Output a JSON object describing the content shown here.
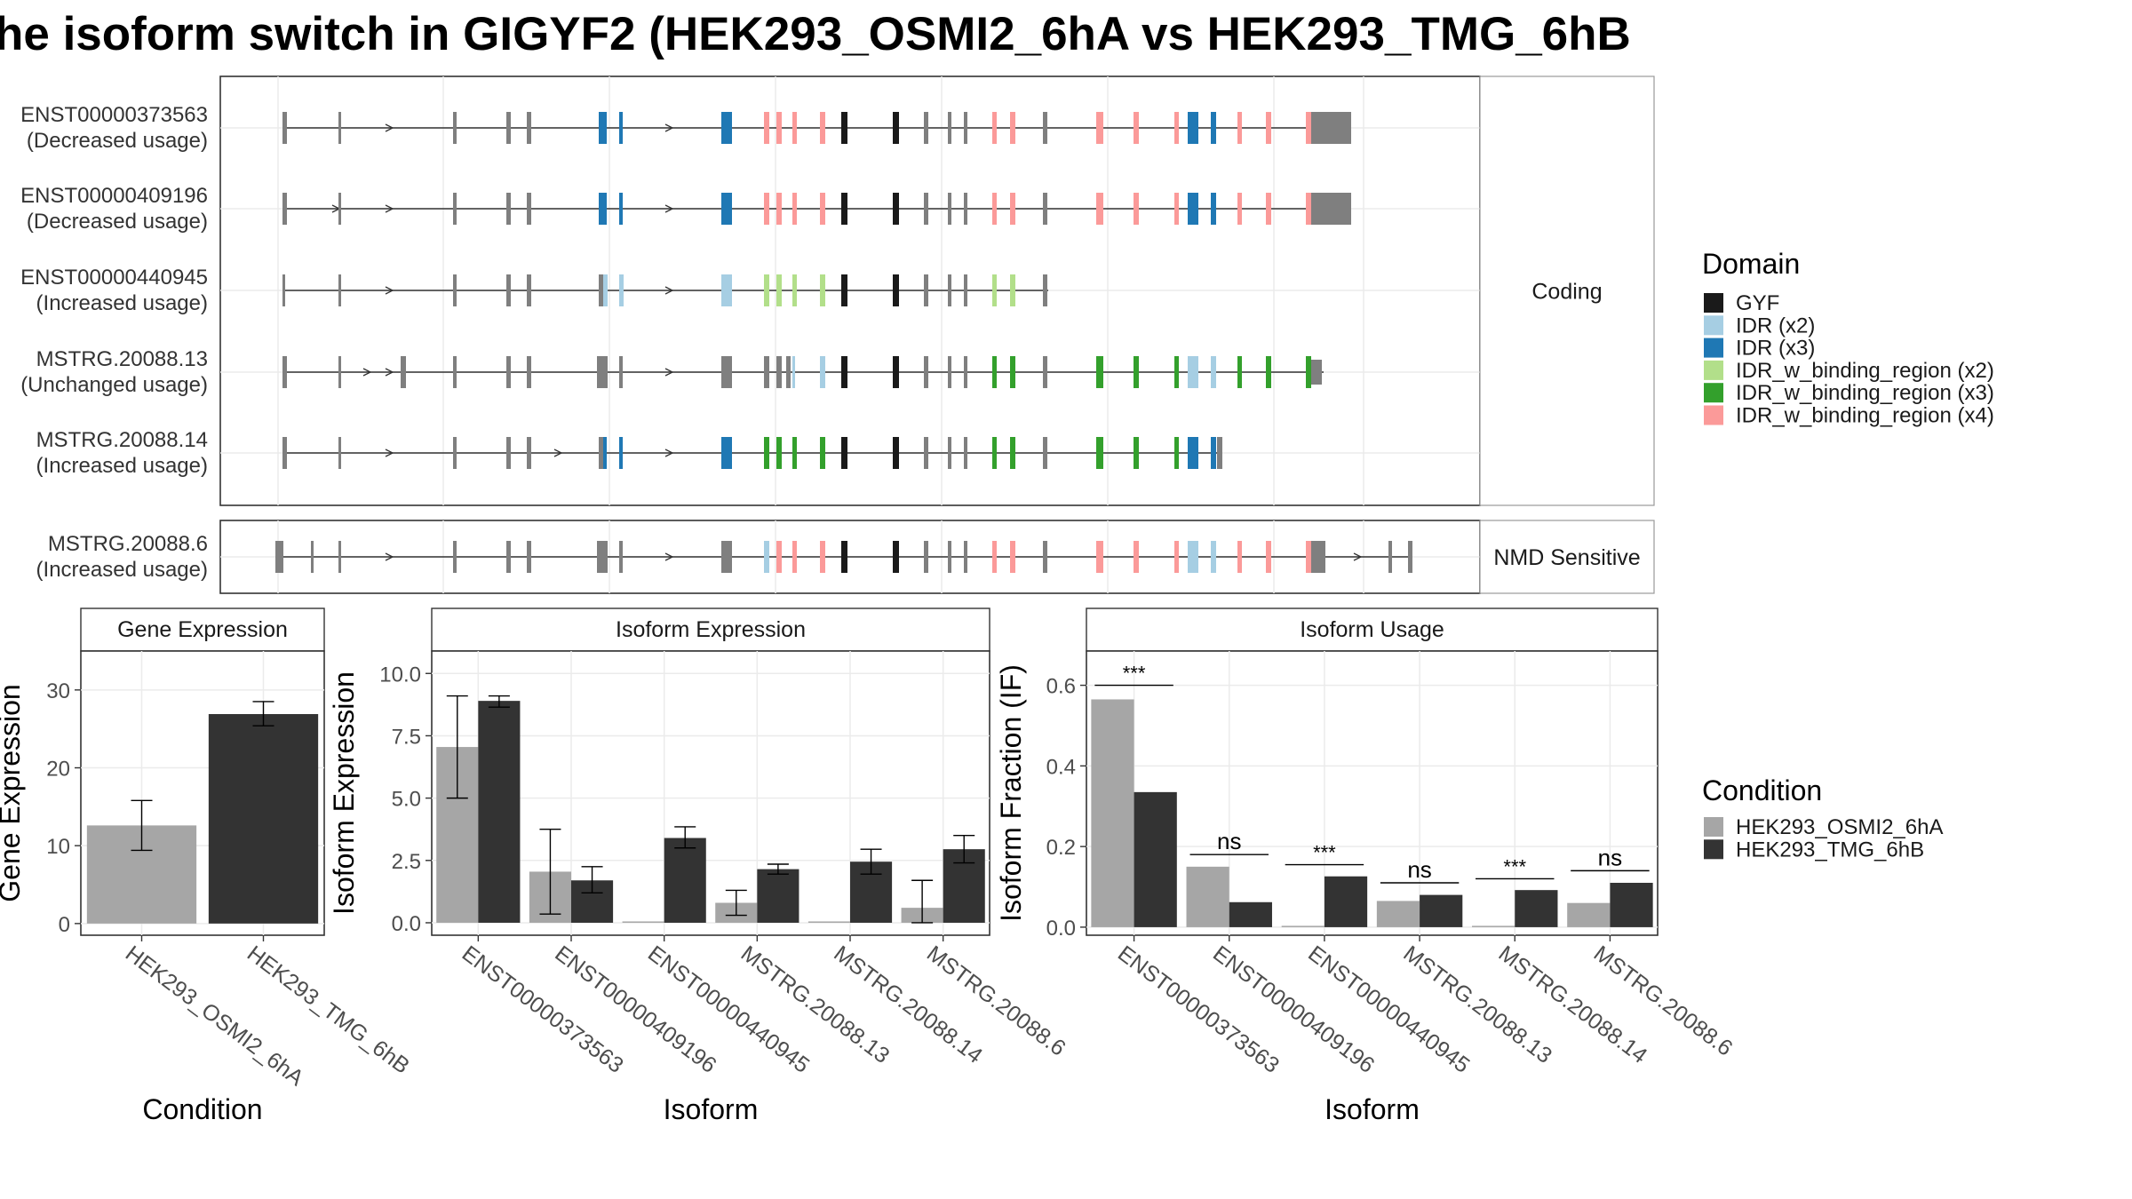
{
  "title": "he isoform switch in GIGYF2 (HEK293_OSMI2_6hA vs HEK293_TMG_6hB",
  "colors": {
    "GYF": "#1a1a1a",
    "IDR (x2)": "#a6cee3",
    "IDR (x3)": "#1f78b4",
    "IDR_w_binding_region (x2)": "#b2df8a",
    "IDR_w_binding_region (x3)": "#33a02c",
    "IDR_w_binding_region (x4)": "#fb9a99",
    "exon": "#7f7f7f",
    "cond_a": "#a6a6a6",
    "cond_b": "#333333"
  },
  "structure": {
    "panels": [
      {
        "label": "Coding",
        "isoforms": [
          {
            "id": "ENST00000373563",
            "usage": "(Decreased usage)"
          },
          {
            "id": "ENST00000409196",
            "usage": "(Decreased usage)"
          },
          {
            "id": "ENST00000440945",
            "usage": "(Increased usage)"
          },
          {
            "id": "MSTRG.20088.13",
            "usage": "(Unchanged usage)"
          },
          {
            "id": "MSTRG.20088.14",
            "usage": "(Increased usage)"
          }
        ]
      },
      {
        "label": "NMD Sensitive",
        "isoforms": [
          {
            "id": "MSTRG.20088.6",
            "usage": "(Increased usage)"
          }
        ]
      }
    ]
  },
  "legends": {
    "domain_title": "Domain",
    "domain_items": [
      "GYF",
      "IDR (x2)",
      "IDR (x3)",
      "IDR_w_binding_region (x2)",
      "IDR_w_binding_region (x3)",
      "IDR_w_binding_region (x4)"
    ],
    "condition_title": "Condition",
    "condition_items": [
      "HEK293_OSMI2_6hA",
      "HEK293_TMG_6hB"
    ]
  },
  "chart_data": [
    {
      "type": "bar",
      "title": "Gene Expression",
      "xlabel": "Condition",
      "ylabel": "Gene Expression",
      "categories": [
        "HEK293_OSMI2_6hA",
        "HEK293_TMG_6hB"
      ],
      "values": [
        12.6,
        26.9
      ],
      "errors": [
        [
          9.4,
          15.8
        ],
        [
          25.4,
          28.5
        ]
      ],
      "ylim": [
        -1.5,
        35
      ],
      "yticks": [
        0,
        10,
        20,
        30
      ]
    },
    {
      "type": "bar",
      "title": "Isoform Expression",
      "xlabel": "Isoform",
      "ylabel": "Isoform Expression",
      "categories": [
        "ENST00000373563",
        "ENST00000409196",
        "ENST00000440945",
        "MSTRG.20088.13",
        "MSTRG.20088.14",
        "MSTRG.20088.6"
      ],
      "series": [
        {
          "name": "HEK293_OSMI2_6hA",
          "values": [
            7.05,
            2.05,
            0.0,
            0.8,
            0.0,
            0.6
          ],
          "errors": [
            [
              5.0,
              9.1
            ],
            [
              0.35,
              3.75
            ],
            [
              0,
              0
            ],
            [
              0.3,
              1.3
            ],
            [
              0,
              0
            ],
            [
              0,
              1.7
            ]
          ]
        },
        {
          "name": "HEK293_TMG_6hB",
          "values": [
            8.9,
            1.7,
            3.4,
            2.15,
            2.45,
            2.95
          ],
          "errors": [
            [
              8.65,
              9.1
            ],
            [
              1.2,
              2.25
            ],
            [
              3.0,
              3.85
            ],
            [
              1.95,
              2.35
            ],
            [
              1.95,
              2.95
            ],
            [
              2.4,
              3.5
            ]
          ]
        }
      ],
      "ylim": [
        -0.5,
        10.9
      ],
      "yticks": [
        "0.0",
        "2.5",
        "5.0",
        "7.5",
        "10.0"
      ]
    },
    {
      "type": "bar",
      "title": "Isoform Usage",
      "xlabel": "Isoform",
      "ylabel": "Isoform Fraction (IF)",
      "categories": [
        "ENST00000373563",
        "ENST00000409196",
        "ENST00000440945",
        "MSTRG.20088.13",
        "MSTRG.20088.14",
        "MSTRG.20088.6"
      ],
      "series": [
        {
          "name": "HEK293_OSMI2_6hA",
          "values": [
            0.565,
            0.15,
            0.0,
            0.065,
            0.0,
            0.06
          ]
        },
        {
          "name": "HEK293_TMG_6hB",
          "values": [
            0.335,
            0.062,
            0.126,
            0.08,
            0.092,
            0.11
          ]
        }
      ],
      "significance": [
        "***",
        "ns",
        "***",
        "ns",
        "***",
        "ns"
      ],
      "sig_level": [
        0.6,
        0.18,
        0.155,
        0.11,
        0.12,
        0.14
      ],
      "ylim": [
        -0.02,
        0.685
      ],
      "yticks": [
        "0.0",
        "0.2",
        "0.4",
        "0.6"
      ]
    }
  ]
}
